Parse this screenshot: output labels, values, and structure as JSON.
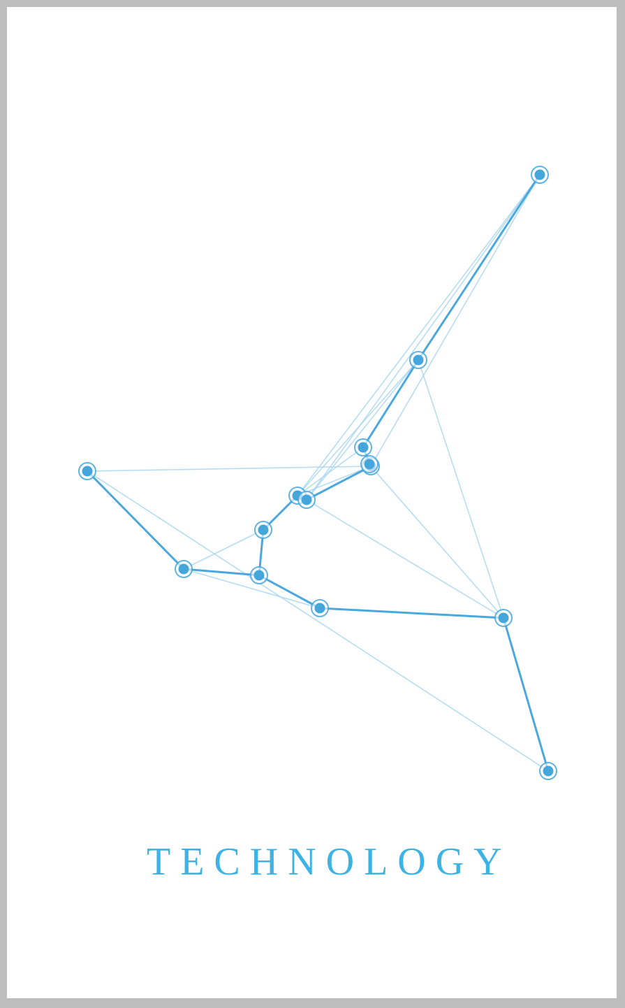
{
  "poster": {
    "title": "TECHNOLOGY"
  },
  "colors": {
    "accent": "#3db3e4",
    "line": "#4aa8dd",
    "faint_line": "#a9d6f0",
    "node": "#45a6dc",
    "frame": "#bdbdbd",
    "background": "#ffffff"
  }
}
